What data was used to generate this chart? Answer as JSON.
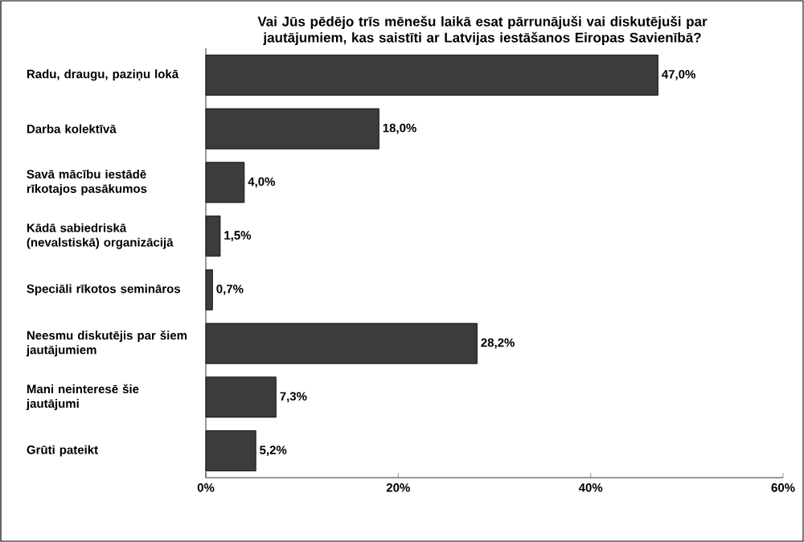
{
  "chart_data": {
    "type": "bar",
    "orientation": "horizontal",
    "title": "Vai Jūs pēdējo trīs mēnešu laikā esat pārrunājuši vai diskutējuši par jautājumiem, kas saistīti ar Latvijas iestāšanos Eiropas Savienībā?",
    "categories": [
      "Radu, draugu, paziņu lokā",
      "Darba kolektīvā",
      "Savā mācību iestādē rīkotajos pasākumos",
      "Kādā sabiedriskā (nevalstiskā) organizācijā",
      "Speciāli rīkotos semināros",
      "Neesmu diskutējis par šiem jautājumiem",
      "Mani neinteresē šie jautājumi",
      "Grūti pateikt"
    ],
    "values": [
      47.0,
      18.0,
      4.0,
      1.5,
      0.7,
      28.2,
      7.3,
      5.2
    ],
    "value_labels": [
      "47,0%",
      "18,0%",
      "4,0%",
      "1,5%",
      "0,7%",
      "28,2%",
      "7,3%",
      "5,2%"
    ],
    "color": "#3c3c3c",
    "xlim": [
      0,
      60
    ],
    "xticks": [
      {
        "value": 0,
        "label": "0%"
      },
      {
        "value": 20,
        "label": "20%"
      },
      {
        "value": 40,
        "label": "40%"
      },
      {
        "value": 60,
        "label": "60%"
      }
    ],
    "grid": false
  }
}
